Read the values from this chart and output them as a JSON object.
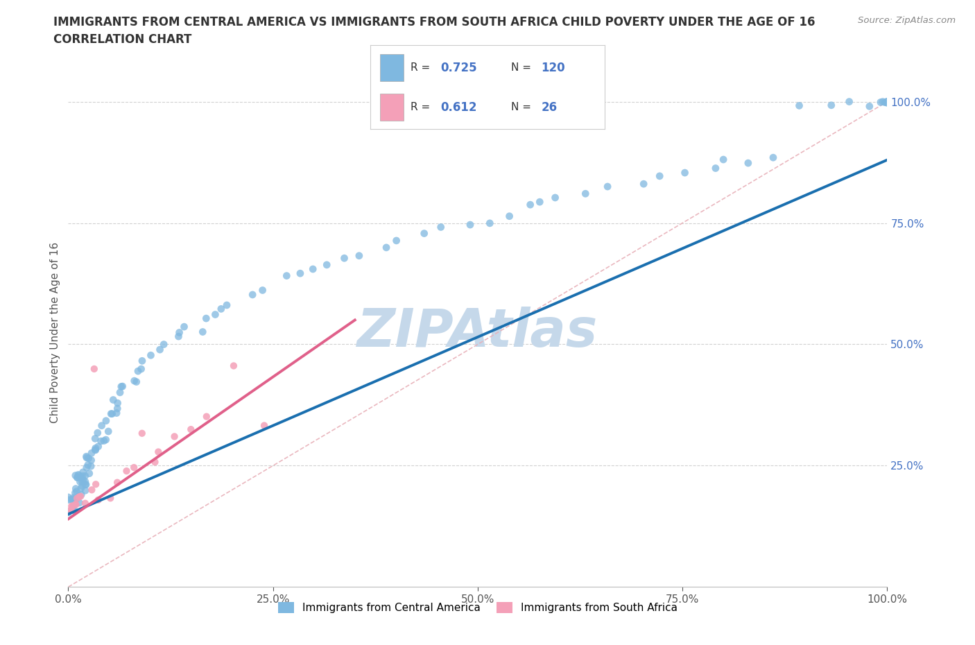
{
  "title_line1": "IMMIGRANTS FROM CENTRAL AMERICA VS IMMIGRANTS FROM SOUTH AFRICA CHILD POVERTY UNDER THE AGE OF 16",
  "title_line2": "CORRELATION CHART",
  "source_text": "Source: ZipAtlas.com",
  "ylabel": "Child Poverty Under the Age of 16",
  "legend_label1": "Immigrants from Central America",
  "legend_label2": "Immigrants from South Africa",
  "R1": 0.725,
  "N1": 120,
  "R2": 0.612,
  "N2": 26,
  "color_blue_scatter": "#7fb8e0",
  "color_pink_scatter": "#f4a0b8",
  "color_blue_line": "#1a6faf",
  "color_pink_line": "#e0608a",
  "color_diag": "#e8b0b8",
  "watermark_color": "#c5d8ea",
  "ytick_color": "#4472c4",
  "blue_x": [
    0.003,
    0.004,
    0.005,
    0.005,
    0.006,
    0.007,
    0.007,
    0.008,
    0.008,
    0.009,
    0.009,
    0.01,
    0.01,
    0.011,
    0.011,
    0.012,
    0.012,
    0.013,
    0.013,
    0.014,
    0.014,
    0.015,
    0.015,
    0.016,
    0.016,
    0.017,
    0.017,
    0.018,
    0.018,
    0.019,
    0.019,
    0.02,
    0.02,
    0.021,
    0.022,
    0.023,
    0.024,
    0.025,
    0.026,
    0.027,
    0.028,
    0.029,
    0.03,
    0.031,
    0.032,
    0.033,
    0.034,
    0.035,
    0.036,
    0.037,
    0.038,
    0.04,
    0.042,
    0.044,
    0.046,
    0.048,
    0.05,
    0.052,
    0.054,
    0.056,
    0.058,
    0.06,
    0.065,
    0.07,
    0.075,
    0.08,
    0.085,
    0.09,
    0.095,
    0.1,
    0.11,
    0.12,
    0.13,
    0.14,
    0.15,
    0.16,
    0.17,
    0.18,
    0.19,
    0.2,
    0.22,
    0.24,
    0.26,
    0.28,
    0.3,
    0.32,
    0.34,
    0.36,
    0.38,
    0.4,
    0.43,
    0.46,
    0.49,
    0.51,
    0.54,
    0.56,
    0.58,
    0.6,
    0.63,
    0.66,
    0.7,
    0.73,
    0.75,
    0.78,
    0.8,
    0.83,
    0.86,
    0.9,
    0.93,
    0.96,
    0.98,
    1.0,
    1.0,
    1.0,
    1.0,
    1.0,
    1.0,
    1.0,
    1.0,
    1.0
  ],
  "blue_y": [
    0.155,
    0.16,
    0.165,
    0.175,
    0.17,
    0.175,
    0.18,
    0.178,
    0.185,
    0.183,
    0.19,
    0.188,
    0.195,
    0.192,
    0.198,
    0.195,
    0.202,
    0.2,
    0.208,
    0.205,
    0.213,
    0.21,
    0.218,
    0.215,
    0.222,
    0.218,
    0.226,
    0.222,
    0.23,
    0.225,
    0.235,
    0.228,
    0.238,
    0.232,
    0.24,
    0.245,
    0.248,
    0.252,
    0.258,
    0.262,
    0.265,
    0.27,
    0.275,
    0.278,
    0.282,
    0.288,
    0.292,
    0.296,
    0.3,
    0.305,
    0.312,
    0.318,
    0.325,
    0.332,
    0.34,
    0.348,
    0.355,
    0.362,
    0.37,
    0.378,
    0.385,
    0.392,
    0.405,
    0.415,
    0.428,
    0.438,
    0.448,
    0.455,
    0.468,
    0.475,
    0.488,
    0.5,
    0.515,
    0.525,
    0.535,
    0.545,
    0.555,
    0.562,
    0.575,
    0.582,
    0.598,
    0.615,
    0.628,
    0.642,
    0.655,
    0.665,
    0.678,
    0.688,
    0.7,
    0.712,
    0.725,
    0.738,
    0.748,
    0.758,
    0.768,
    0.778,
    0.788,
    0.8,
    0.815,
    0.825,
    0.838,
    0.85,
    0.855,
    0.865,
    0.875,
    0.882,
    0.89,
    1.0,
    1.0,
    1.0,
    1.0,
    1.0,
    1.0,
    1.0,
    1.0,
    1.0,
    1.0,
    1.0,
    1.0,
    1.0
  ],
  "pink_x": [
    0.002,
    0.003,
    0.005,
    0.006,
    0.008,
    0.01,
    0.012,
    0.015,
    0.018,
    0.02,
    0.025,
    0.03,
    0.035,
    0.04,
    0.05,
    0.06,
    0.07,
    0.08,
    0.09,
    0.1,
    0.11,
    0.13,
    0.15,
    0.17,
    0.2,
    0.24
  ],
  "pink_y": [
    0.155,
    0.158,
    0.162,
    0.165,
    0.175,
    0.175,
    0.18,
    0.185,
    0.192,
    0.175,
    0.195,
    0.455,
    0.215,
    0.182,
    0.188,
    0.22,
    0.245,
    0.248,
    0.318,
    0.26,
    0.285,
    0.305,
    0.33,
    0.35,
    0.46,
    0.33
  ]
}
